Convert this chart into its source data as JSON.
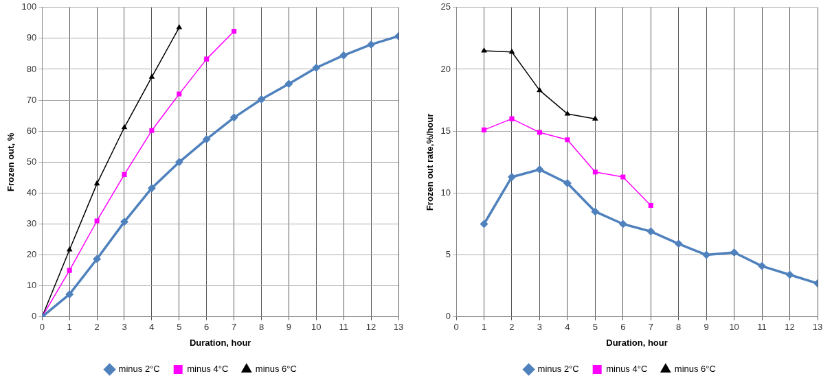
{
  "chart_data": [
    {
      "type": "line",
      "xlabel": "Duration, hour",
      "ylabel": "Frozen out, %",
      "xlim": [
        0,
        13
      ],
      "xticks": [
        0,
        1,
        2,
        3,
        4,
        5,
        6,
        7,
        8,
        9,
        10,
        11,
        12,
        13
      ],
      "ylim": [
        0,
        100
      ],
      "yticks": [
        0,
        10,
        20,
        30,
        40,
        50,
        60,
        70,
        80,
        90,
        100
      ],
      "grid": true,
      "legend": "bottom",
      "series": [
        {
          "name": "minus 2°C",
          "color": "#4f81bd",
          "marker": "diamond",
          "x": [
            0,
            1,
            2,
            3,
            4,
            5,
            6,
            7,
            8,
            9,
            10,
            11,
            12,
            13
          ],
          "values": [
            0,
            7.3,
            18.7,
            30.7,
            41.6,
            50,
            57.4,
            64.4,
            70.3,
            75.3,
            80.5,
            84.5,
            88,
            90.7
          ]
        },
        {
          "name": "minus 4°C",
          "color": "#ff00ff",
          "marker": "square",
          "x": [
            0,
            1,
            2,
            3,
            4,
            5,
            6,
            7
          ],
          "values": [
            0,
            15,
            31,
            46,
            60.2,
            72,
            83.3,
            92.3
          ]
        },
        {
          "name": "minus 6°C",
          "color": "#000000",
          "marker": "triangle",
          "x": [
            0,
            1,
            2,
            3,
            4,
            5
          ],
          "values": [
            0,
            21.7,
            43,
            61.2,
            77.5,
            93.5
          ]
        }
      ]
    },
    {
      "type": "line",
      "xlabel": "Duration, hour",
      "ylabel": "Frozen out rate,%/hour",
      "xlim": [
        0,
        13
      ],
      "xticks": [
        0,
        1,
        2,
        3,
        4,
        5,
        6,
        7,
        8,
        9,
        10,
        11,
        12,
        13
      ],
      "ylim": [
        0,
        25
      ],
      "yticks": [
        0,
        5,
        10,
        15,
        20,
        25
      ],
      "grid": true,
      "legend": "bottom",
      "series": [
        {
          "name": "minus 2°C",
          "color": "#4f81bd",
          "marker": "diamond",
          "x": [
            1,
            2,
            3,
            4,
            5,
            6,
            7,
            8,
            9,
            10,
            11,
            12,
            13
          ],
          "values": [
            7.5,
            11.3,
            11.9,
            10.8,
            8.5,
            7.5,
            6.9,
            5.9,
            5.0,
            5.2,
            4.1,
            3.4,
            2.7
          ]
        },
        {
          "name": "minus 4°C",
          "color": "#ff00ff",
          "marker": "square",
          "x": [
            1,
            2,
            3,
            4,
            5,
            6,
            7
          ],
          "values": [
            15.1,
            16.0,
            14.9,
            14.3,
            11.7,
            11.3,
            9.0
          ]
        },
        {
          "name": "minus 6°C",
          "color": "#000000",
          "marker": "triangle",
          "x": [
            1,
            2,
            3,
            4,
            5
          ],
          "values": [
            21.5,
            21.4,
            18.3,
            16.4,
            16.0
          ]
        }
      ]
    }
  ]
}
